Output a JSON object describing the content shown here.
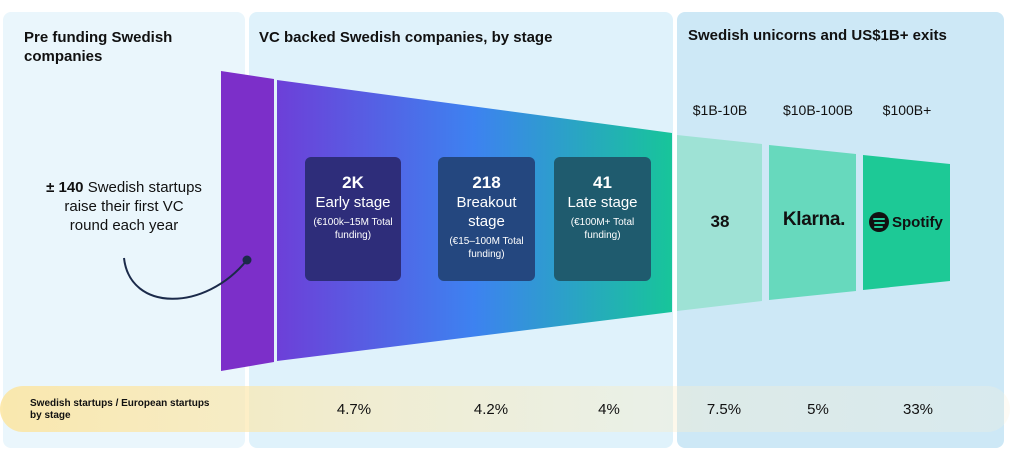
{
  "panels": {
    "pre_funding_title": "Pre funding Swedish companies",
    "vc_title": "VC backed Swedish companies, by stage",
    "unicorns_title": "Swedish unicorns and US$1B+ exits"
  },
  "pre_funding": {
    "count": "± 140",
    "text": "Swedish startups raise their first VC round each year"
  },
  "stages": [
    {
      "count": "2K",
      "name": "Early stage",
      "funding": "(€100k–15M Total funding)"
    },
    {
      "count": "218",
      "name": "Breakout stage",
      "funding": "(€15–100M Total funding)"
    },
    {
      "count": "41",
      "name": "Late stage",
      "funding": "(€100M+ Total funding)"
    }
  ],
  "unicorns": {
    "ranges": [
      "$1B-10B",
      "$10B-100B",
      "$100B+"
    ],
    "count_1b_10b": "38",
    "klarna_logo_text": "Klarna.",
    "spotify_logo_text": "Spotify",
    "logo_icons": [
      "klarna-logo",
      "spotify-logo"
    ]
  },
  "ratios": {
    "label": "Swedish startups / European startups by stage",
    "values": [
      "4.7%",
      "4.2%",
      "4%",
      "7.5%",
      "5%",
      "33%"
    ]
  },
  "colors": {
    "pre_bar": "#7c2fc9",
    "gradient": [
      "#6d3fd8",
      "#3d82f0",
      "#17c59a"
    ],
    "uni_1": "#9ee2d5",
    "uni_2": "#67d9bd",
    "uni_3": "#1dc996",
    "stage_box_1": "#2e2d7a",
    "stage_box_2": "#24477f",
    "stage_box_3": "#1f5b6e"
  }
}
